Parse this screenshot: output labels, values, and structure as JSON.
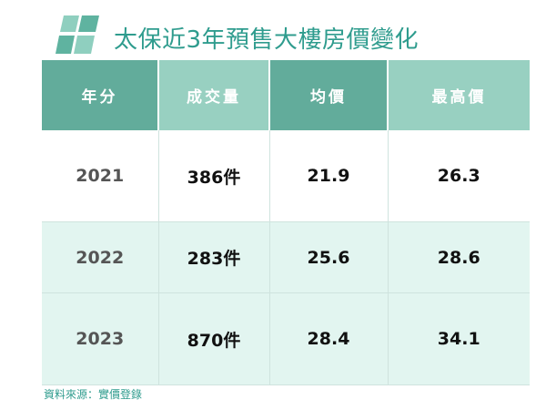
{
  "title": "太保近3年預售大樓房價變化",
  "table": {
    "headers": [
      "年分",
      "成交量",
      "均價",
      "最高價"
    ],
    "rows": [
      {
        "year": "2021",
        "volume": "386件",
        "avg": "21.9",
        "max": "26.3"
      },
      {
        "year": "2022",
        "volume": "283件",
        "avg": "25.6",
        "max": "28.6"
      },
      {
        "year": "2023",
        "volume": "870件",
        "avg": "28.4",
        "max": "34.1"
      }
    ]
  },
  "source": "資料來源：實價登錄",
  "colors": {
    "accent": "#2f9c8e",
    "header_dark": "#62ac9b",
    "header_light": "#98d0c1",
    "row_tint": "#e2f5f0"
  },
  "icons": {
    "logo": "stacked-squares-logo-icon"
  }
}
